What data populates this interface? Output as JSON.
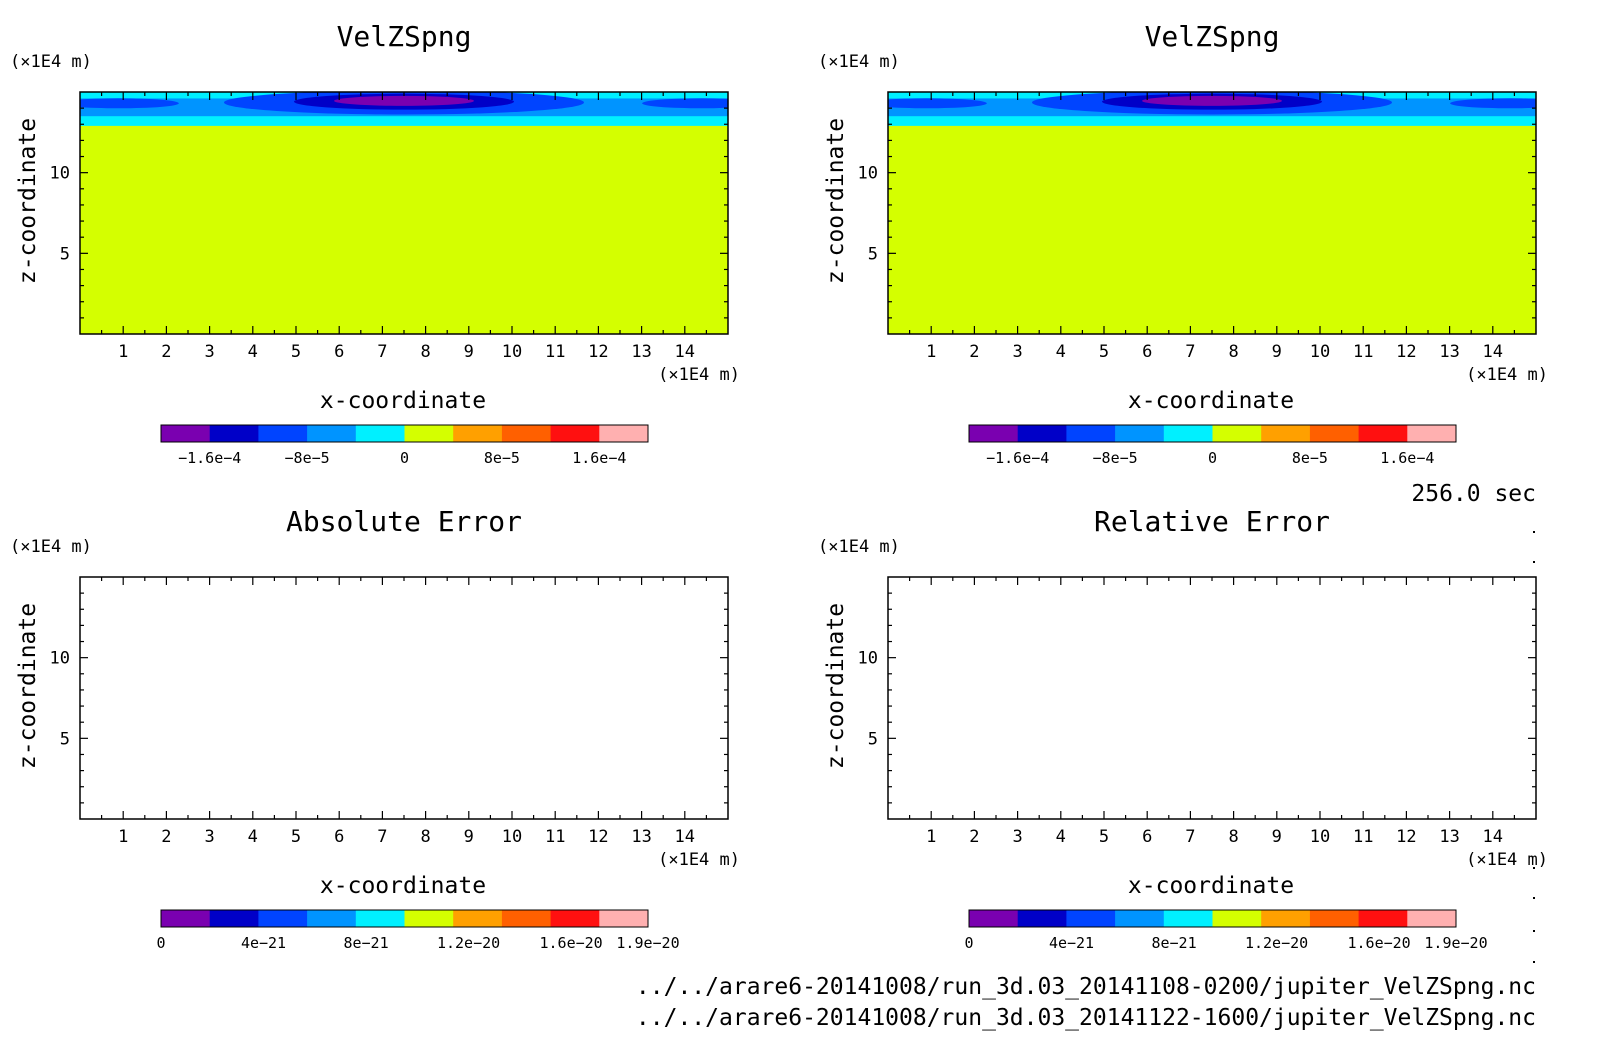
{
  "time_label": "256.0 sec",
  "footer_files": [
    "../../arare6-20141008/run_3d.03_20141108-0200/jupiter_VelZSpng.nc",
    "../../arare6-20141008/run_3d.03_20141122-1600/jupiter_VelZSpng.nc"
  ],
  "colors": {
    "frame": "#000000",
    "background_field": "#d4ff00",
    "ramp": [
      "#7a00b0",
      "#0000c8",
      "#0044ff",
      "#0094ff",
      "#00f0ff",
      "#d4ff00",
      "#ffa000",
      "#ff6000",
      "#ff1010",
      "#ffb0b0"
    ]
  },
  "chart_data": [
    {
      "type": "heatmap",
      "title": "VelZSpng",
      "xlabel": "x-coordinate",
      "ylabel": "z-coordinate",
      "x_unit": "(×1E4 m)",
      "y_unit": "(×1E4 m)",
      "xlim": [
        0,
        15
      ],
      "ylim": [
        0,
        15
      ],
      "x_ticks": [
        "1",
        "2",
        "3",
        "4",
        "5",
        "6",
        "7",
        "8",
        "9",
        "10",
        "11",
        "12",
        "13",
        "14"
      ],
      "y_ticks": [
        "5",
        "10"
      ],
      "filled": true,
      "field_description": "negative anomaly near top centered at x≈7.5, z≈14.5; zero elsewhere",
      "colorbar": {
        "labels": [
          "−1.6e−4",
          "−8e−5",
          "0",
          "8e−5",
          "1.6e−4"
        ],
        "min": -0.0002,
        "max": 0.0002
      }
    },
    {
      "type": "heatmap",
      "title": "VelZSpng",
      "xlabel": "x-coordinate",
      "ylabel": "z-coordinate",
      "x_unit": "(×1E4 m)",
      "y_unit": "(×1E4 m)",
      "xlim": [
        0,
        15
      ],
      "ylim": [
        0,
        15
      ],
      "x_ticks": [
        "1",
        "2",
        "3",
        "4",
        "5",
        "6",
        "7",
        "8",
        "9",
        "10",
        "11",
        "12",
        "13",
        "14"
      ],
      "y_ticks": [
        "5",
        "10"
      ],
      "filled": true,
      "colorbar": {
        "labels": [
          "−1.6e−4",
          "−8e−5",
          "0",
          "8e−5",
          "1.6e−4"
        ],
        "min": -0.0002,
        "max": 0.0002
      }
    },
    {
      "type": "heatmap",
      "title": "Absolute Error",
      "xlabel": "x-coordinate",
      "ylabel": "z-coordinate",
      "x_unit": "(×1E4 m)",
      "y_unit": "(×1E4 m)",
      "xlim": [
        0,
        15
      ],
      "ylim": [
        0,
        15
      ],
      "x_ticks": [
        "1",
        "2",
        "3",
        "4",
        "5",
        "6",
        "7",
        "8",
        "9",
        "10",
        "11",
        "12",
        "13",
        "14"
      ],
      "y_ticks": [
        "5",
        "10"
      ],
      "filled": false,
      "colorbar": {
        "labels": [
          "0",
          "4e−21",
          "8e−21",
          "1.2e−20",
          "1.6e−20",
          "1.9e−20"
        ],
        "min": 0,
        "max": 1.9e-20
      }
    },
    {
      "type": "heatmap",
      "title": "Relative Error",
      "xlabel": "x-coordinate",
      "ylabel": "z-coordinate",
      "x_unit": "(×1E4 m)",
      "y_unit": "(×1E4 m)",
      "xlim": [
        0,
        15
      ],
      "ylim": [
        0,
        15
      ],
      "x_ticks": [
        "1",
        "2",
        "3",
        "4",
        "5",
        "6",
        "7",
        "8",
        "9",
        "10",
        "11",
        "12",
        "13",
        "14"
      ],
      "y_ticks": [
        "5",
        "10"
      ],
      "filled": false,
      "colorbar": {
        "labels": [
          "0",
          "4e−21",
          "8e−21",
          "1.2e−20",
          "1.6e−20",
          "1.9e−20"
        ],
        "min": 0,
        "max": 1.9e-20
      }
    }
  ]
}
